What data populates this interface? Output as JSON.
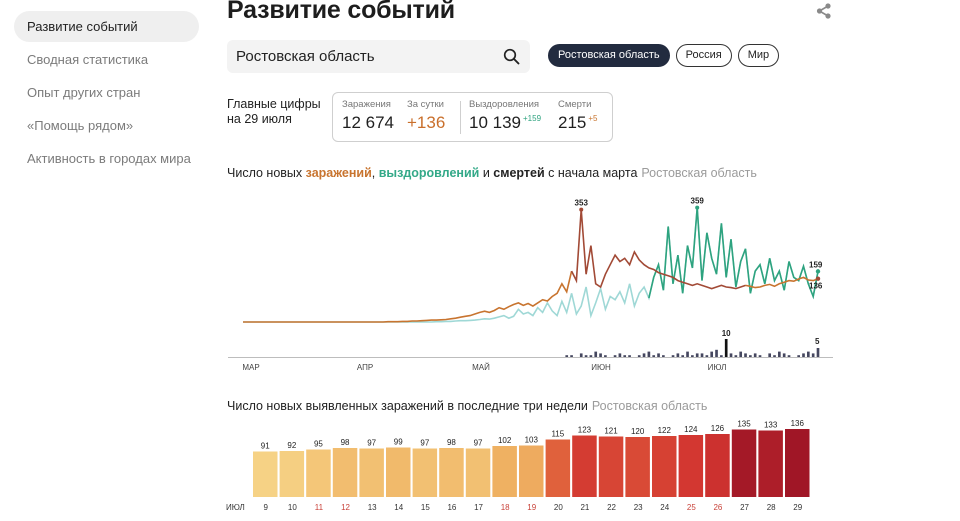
{
  "sidebar": {
    "items": [
      {
        "label": "Развитие событий",
        "active": true
      },
      {
        "label": "Сводная статистика",
        "active": false
      },
      {
        "label": "Опыт других стран",
        "active": false
      },
      {
        "label": "«Помощь рядом»",
        "active": false
      },
      {
        "label": "Активность в городах мира",
        "active": false
      }
    ]
  },
  "header": {
    "title": "Развитие событий",
    "share_icon": "share-icon"
  },
  "search": {
    "value": "Ростовская область",
    "icon": "search-icon"
  },
  "regions": [
    {
      "label": "Ростовская область",
      "active": true
    },
    {
      "label": "Россия",
      "active": false
    },
    {
      "label": "Мир",
      "active": false
    }
  ],
  "key_figures": {
    "label_line1": "Главные цифры",
    "label_line2": "на 29 июля",
    "infections_caption": "Заражения",
    "infections_value": "12 674",
    "per_day_caption": "За сутки",
    "per_day_value": "+136",
    "recoveries_caption": "Выздоровления",
    "recoveries_value": "10 139",
    "recoveries_delta": "+159",
    "deaths_caption": "Смерти",
    "deaths_value": "215",
    "deaths_delta": "+5"
  },
  "colors": {
    "infections": "#c8742f",
    "recoveries": "#2ea37f",
    "recoveries_light": "#9fd8d6",
    "peak_infections": "#a24a36",
    "deaths_bars": "#45475f",
    "active_chip": "#222b3f"
  },
  "trend_chart": {
    "title_prefix": "Число новых ",
    "title_infections": "заражений",
    "title_sep1": ", ",
    "title_recoveries": "выздоровлений",
    "title_sep2": " и ",
    "title_deaths": "смертей",
    "title_suffix": " с начала марта",
    "region": "Ростовская область"
  },
  "chart_data": [
    {
      "type": "line",
      "title": "Число новых заражений, выздоровлений и смертей с начала марта",
      "x_ticks": [
        "МАР",
        "АПР",
        "МАЙ",
        "ИЮН",
        "ИЮЛ"
      ],
      "ylim": [
        0,
        380
      ],
      "series": [
        {
          "name": "заражений",
          "color": "#c8742f",
          "values": [
            0,
            0,
            0,
            0,
            0,
            0,
            0,
            0,
            0,
            0,
            0,
            0,
            0,
            0,
            0,
            0,
            0,
            0,
            0,
            0,
            0,
            0,
            0,
            0,
            0,
            0,
            0,
            0,
            0,
            0,
            1,
            1,
            1,
            2,
            2,
            3,
            3,
            4,
            5,
            6,
            6,
            7,
            8,
            10,
            12,
            15,
            18,
            20,
            25,
            30,
            34,
            30,
            36,
            45,
            40,
            48,
            55,
            60,
            52,
            58,
            50,
            60,
            70,
            66,
            80,
            90,
            120,
            95,
            160,
            130,
            353,
            150,
            240,
            120,
            110,
            150,
            180,
            210,
            190,
            200,
            180,
            220,
            195,
            180,
            170,
            165,
            155,
            150,
            145,
            140,
            130,
            125,
            120,
            115,
            120,
            115,
            110,
            105,
            110,
            115,
            110,
            108,
            105,
            110,
            115,
            112,
            108,
            110,
            115,
            118,
            112,
            120,
            125,
            130,
            128,
            135,
            140,
            132,
            130,
            136
          ]
        },
        {
          "name": "выздоровлений",
          "color": "#2ea37f",
          "values": [
            0,
            0,
            0,
            0,
            0,
            0,
            0,
            0,
            0,
            0,
            0,
            0,
            0,
            0,
            0,
            0,
            0,
            0,
            0,
            0,
            0,
            0,
            0,
            0,
            0,
            0,
            0,
            0,
            0,
            0,
            0,
            0,
            0,
            0,
            0,
            0,
            0,
            0,
            0,
            0,
            1,
            1,
            2,
            2,
            3,
            4,
            4,
            5,
            6,
            8,
            10,
            9,
            12,
            16,
            20,
            12,
            18,
            40,
            25,
            30,
            20,
            45,
            30,
            60,
            35,
            20,
            65,
            30,
            90,
            25,
            50,
            110,
            20,
            60,
            105,
            40,
            80,
            70,
            95,
            60,
            120,
            50,
            90,
            110,
            75,
            140,
            180,
            100,
            300,
            120,
            210,
            90,
            240,
            170,
            359,
            130,
            280,
            200,
            150,
            310,
            140,
            260,
            110,
            190,
            230,
            90,
            160,
            180,
            120,
            200,
            130,
            160,
            100,
            190,
            140,
            130,
            175,
            120,
            80,
            159
          ]
        }
      ],
      "annotations": [
        {
          "label": "353",
          "series": "заражений"
        },
        {
          "label": "359",
          "series": "выздоровлений"
        },
        {
          "label": "159",
          "series": "выздоровлений"
        },
        {
          "label": "136",
          "series": "заражений"
        }
      ],
      "deaths": {
        "name": "смертей",
        "values": [
          0,
          0,
          0,
          0,
          0,
          0,
          0,
          0,
          0,
          0,
          0,
          0,
          0,
          0,
          0,
          0,
          0,
          0,
          0,
          0,
          0,
          0,
          0,
          0,
          0,
          0,
          0,
          0,
          0,
          0,
          0,
          0,
          0,
          0,
          0,
          0,
          0,
          0,
          0,
          0,
          0,
          0,
          0,
          0,
          0,
          0,
          0,
          0,
          0,
          0,
          0,
          0,
          0,
          0,
          0,
          0,
          0,
          0,
          0,
          0,
          0,
          0,
          0,
          0,
          0,
          0,
          0,
          1,
          1,
          0,
          2,
          1,
          1,
          3,
          2,
          1,
          0,
          1,
          2,
          1,
          1,
          0,
          1,
          2,
          3,
          1,
          2,
          1,
          0,
          1,
          2,
          1,
          3,
          1,
          2,
          2,
          1,
          3,
          4,
          1,
          10,
          2,
          1,
          3,
          2,
          1,
          2,
          1,
          0,
          2,
          1,
          3,
          2,
          1,
          0,
          1,
          2,
          3,
          2,
          5
        ],
        "max_label": "10",
        "last_label": "5"
      }
    },
    {
      "type": "bar",
      "title": "Число новых выявленных заражений в последние три недели",
      "region": "Ростовская область",
      "first_tick": "ИЮЛ",
      "categories": [
        "9",
        "10",
        "11",
        "12",
        "13",
        "14",
        "15",
        "16",
        "17",
        "18",
        "19",
        "20",
        "21",
        "22",
        "23",
        "24",
        "25",
        "26",
        "27",
        "28",
        "29"
      ],
      "weekend": [
        false,
        false,
        true,
        true,
        false,
        false,
        false,
        false,
        false,
        true,
        true,
        false,
        false,
        false,
        false,
        false,
        true,
        true,
        false,
        false,
        false
      ],
      "values": [
        91,
        92,
        95,
        98,
        97,
        99,
        97,
        98,
        97,
        102,
        103,
        115,
        123,
        121,
        120,
        122,
        124,
        126,
        135,
        133,
        136
      ],
      "ylim": [
        0,
        160
      ]
    }
  ]
}
